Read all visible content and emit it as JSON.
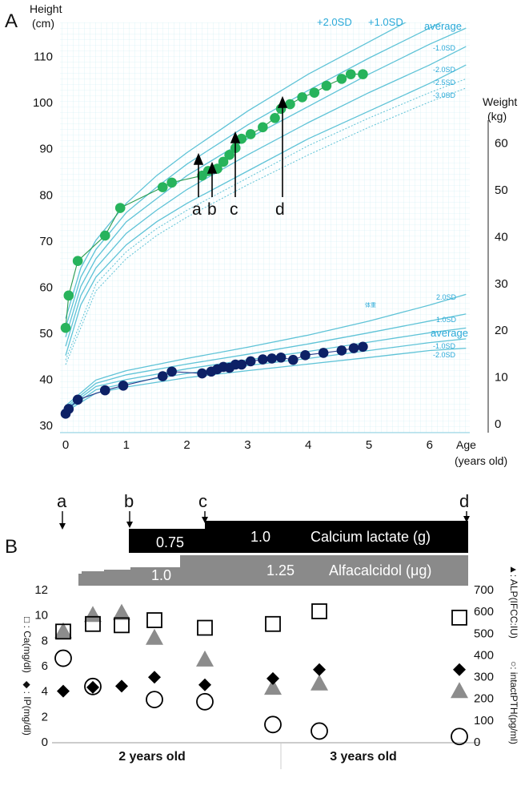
{
  "panelA": {
    "label": "A",
    "height_axis_label": [
      "Height",
      "(cm)"
    ],
    "weight_axis_label": [
      "Weight",
      "(kg)"
    ],
    "age_axis_label": [
      "Age",
      "(years old)"
    ],
    "height_ticks": [
      30,
      40,
      50,
      60,
      70,
      80,
      90,
      100,
      110
    ],
    "weight_ticks": [
      0,
      10,
      20,
      30,
      40,
      50,
      60
    ],
    "age_ticks": [
      0,
      1,
      2,
      3,
      4,
      5,
      6
    ],
    "height_curve_labels": [
      "+2.0SD",
      "+1.0SD",
      "average",
      "-1.0SD",
      "-2.0SD",
      "-2.5SD",
      "-3.0SD"
    ],
    "weight_curve_labels": [
      "体重",
      "2.0SD",
      "1.0SD",
      "average",
      "-1.0SD",
      "-2.0SD"
    ],
    "event_labels": [
      "a",
      "b",
      "c",
      "d"
    ]
  },
  "panelB": {
    "label": "B",
    "event_labels": [
      "a",
      "b",
      "c",
      "d"
    ],
    "calcium_label": "Calcium lactate (g)",
    "calcium_doses": [
      "0.75",
      "1.0"
    ],
    "alfacalcidol_label": "Alfacalcidol (μg)",
    "alfacalcidol_doses": [
      "1.0",
      "1.25"
    ],
    "left_ticks": [
      0,
      2,
      4,
      6,
      8,
      10,
      12
    ],
    "right_ticks": [
      0,
      100,
      200,
      300,
      400,
      500,
      600,
      700
    ],
    "left_axis_labels": [
      "□ : Ca(mg/dl)",
      "◆ : IP(mg/dl)"
    ],
    "right_axis_labels": [
      "▲: ALP(IFCC:IU)",
      "○: intactPTH(pg/ml)"
    ],
    "x_groups": [
      "2 years old",
      "3 years old"
    ]
  },
  "chart_data": [
    {
      "type": "line",
      "title": "",
      "xlabel": "Age (years old)",
      "ylabel": "Height (cm)",
      "xlim": [
        0,
        6.5
      ],
      "ylim": [
        30,
        113
      ],
      "grid": true,
      "reference_curves": [
        {
          "name": "+2.0SD",
          "x": [
            0,
            0.25,
            0.5,
            1,
            1.5,
            2,
            3,
            4,
            5,
            6,
            6.6
          ],
          "y": [
            53,
            64,
            70,
            78,
            84,
            89,
            98,
            106,
            113,
            120,
            124
          ]
        },
        {
          "name": "+1.0SD",
          "x": [
            0,
            0.25,
            0.5,
            1,
            1.5,
            2,
            3,
            4,
            5,
            6,
            6.6
          ],
          "y": [
            51,
            62,
            68,
            76,
            81.5,
            86.5,
            95,
            102.5,
            109.5,
            116,
            120
          ]
        },
        {
          "name": "average",
          "x": [
            0,
            0.25,
            0.5,
            1,
            1.5,
            2,
            3,
            4,
            5,
            6,
            6.6
          ],
          "y": [
            49,
            60,
            66,
            74,
            79,
            84,
            92,
            99,
            106,
            112.5,
            116
          ]
        },
        {
          "name": "-1.0SD",
          "x": [
            0,
            0.25,
            0.5,
            1,
            1.5,
            2,
            3,
            4,
            5,
            6,
            6.6
          ],
          "y": [
            47,
            58,
            64,
            71.5,
            76.5,
            81,
            88.5,
            95.5,
            102,
            108,
            112
          ]
        },
        {
          "name": "-2.0SD",
          "x": [
            0,
            0.25,
            0.5,
            1,
            1.5,
            2,
            3,
            4,
            5,
            6,
            6.6
          ],
          "y": [
            45,
            56,
            62,
            69,
            74,
            78,
            85,
            92,
            98,
            104,
            108
          ]
        },
        {
          "name": "-2.5SD",
          "x": [
            0,
            0.5,
            1,
            1.5,
            2,
            3,
            4,
            5,
            6,
            6.6
          ],
          "y": [
            44,
            60.5,
            67.5,
            72.5,
            76.5,
            83.5,
            90.5,
            96.5,
            102,
            105
          ]
        },
        {
          "name": "-3.0SD",
          "x": [
            0,
            0.5,
            1,
            1.5,
            2,
            3,
            4,
            5,
            6,
            6.6
          ],
          "y": [
            43,
            59,
            66,
            71,
            75,
            82,
            88.5,
            94.5,
            100,
            103
          ]
        }
      ],
      "series": [
        {
          "name": "",
          "x": [
            0,
            0.05,
            0.2,
            0.65,
            0.9,
            1.6,
            1.75,
            2.25,
            2.35,
            2.5,
            2.6,
            2.7,
            2.8,
            2.9,
            3.05,
            3.25,
            3.45,
            3.55,
            3.7,
            3.9,
            4.1,
            4.3,
            4.55,
            4.7,
            4.9
          ],
          "y": [
            51,
            58,
            65.5,
            71,
            77,
            81.5,
            82.5,
            84,
            85,
            85.5,
            87,
            88.5,
            90,
            92,
            93,
            94.5,
            96.5,
            98.5,
            99.5,
            101,
            102,
            103.5,
            105,
            106,
            106
          ]
        }
      ]
    },
    {
      "type": "line",
      "title": "",
      "xlabel": "Age (years old)",
      "ylabel": "Weight (kg)",
      "xlim": [
        0,
        6.5
      ],
      "ylim": [
        0,
        62
      ],
      "grid": true,
      "reference_curves": [
        {
          "name": "2.0SD",
          "x": [
            0,
            0.5,
            1,
            2,
            3,
            4,
            5,
            6,
            6.6
          ],
          "y": [
            3.7,
            9.2,
            11.2,
            13.8,
            16.2,
            18.8,
            21.8,
            25.2,
            27.5
          ]
        },
        {
          "name": "1.0SD",
          "x": [
            0,
            0.5,
            1,
            2,
            3,
            4,
            5,
            6,
            6.6
          ],
          "y": [
            3.3,
            8.5,
            10.3,
            12.6,
            14.7,
            16.9,
            19.3,
            21.8,
            23.3
          ]
        },
        {
          "name": "average",
          "x": [
            0,
            0.5,
            1,
            2,
            3,
            4,
            5,
            6,
            6.6
          ],
          "y": [
            3.0,
            7.8,
            9.3,
            11.6,
            13.5,
            15.3,
            17.3,
            19.3,
            20.3
          ]
        },
        {
          "name": "-1.0SD",
          "x": [
            0,
            0.5,
            1,
            2,
            3,
            4,
            5,
            6,
            6.6
          ],
          "y": [
            2.7,
            7.1,
            8.5,
            10.6,
            12.3,
            13.8,
            15.5,
            17.2,
            18.0
          ]
        },
        {
          "name": "-2.0SD",
          "x": [
            0,
            0.5,
            1,
            2,
            3,
            4,
            5,
            6,
            6.6
          ],
          "y": [
            2.4,
            6.4,
            7.7,
            9.7,
            11.2,
            12.6,
            14.0,
            15.5,
            16.0
          ]
        }
      ],
      "series": [
        {
          "name": "",
          "x": [
            0,
            0.05,
            0.2,
            0.65,
            0.95,
            1.6,
            1.75,
            2.25,
            2.4,
            2.5,
            2.6,
            2.7,
            2.8,
            2.9,
            3.05,
            3.25,
            3.4,
            3.55,
            3.75,
            3.95,
            4.25,
            4.55,
            4.75,
            4.9
          ],
          "y": [
            2.0,
            3.0,
            5.0,
            7.0,
            8.0,
            10.0,
            11.0,
            10.6,
            11.0,
            11.5,
            12.0,
            11.8,
            12.5,
            12.5,
            13.2,
            13.6,
            13.8,
            14.0,
            13.5,
            14.5,
            15.0,
            15.5,
            16.0,
            16.3
          ]
        }
      ],
      "annotations": [
        {
          "label": "a",
          "x": 2.25
        },
        {
          "label": "b",
          "x": 2.45
        },
        {
          "label": "c",
          "x": 2.78
        },
        {
          "label": "d",
          "x": 3.6
        }
      ]
    },
    {
      "type": "scatter",
      "title": "",
      "xlabel": "",
      "ylabel": "Ca(mg/dl) / IP(mg/dl)",
      "y2label": "ALP(IFCC:IU) / intactPTH(pg/ml)",
      "ylim": [
        0,
        12
      ],
      "y2lim": [
        0,
        700
      ],
      "categories": [
        "2 years old",
        "3 years old"
      ],
      "series": [
        {
          "name": "Ca(mg/dl)",
          "axis": "left",
          "x": [
            0,
            1,
            2,
            3,
            4,
            5,
            6,
            7,
            8
          ],
          "y": [
            8.7,
            9.3,
            9.2,
            9.6,
            9.0,
            9.3,
            10.3,
            null,
            9.8
          ]
        },
        {
          "name": "IP(mg/dl)",
          "axis": "left",
          "x": [
            0,
            1,
            2,
            3,
            4,
            5,
            6,
            7,
            8
          ],
          "y": [
            4.0,
            4.3,
            4.4,
            5.1,
            4.5,
            5.0,
            5.7,
            null,
            5.7
          ]
        },
        {
          "name": "ALP(IFCC:IU)",
          "axis": "right",
          "x": [
            0,
            1,
            2,
            3,
            4,
            5,
            6,
            7,
            8
          ],
          "y": [
            510,
            585,
            595,
            480,
            380,
            250,
            270,
            null,
            235
          ]
        },
        {
          "name": "intactPTH(pg/ml)",
          "axis": "right",
          "x": [
            0,
            1,
            2,
            3,
            4,
            5,
            6,
            7,
            8
          ],
          "y": [
            385,
            255,
            null,
            195,
            185,
            80,
            50,
            null,
            25
          ]
        }
      ]
    }
  ]
}
